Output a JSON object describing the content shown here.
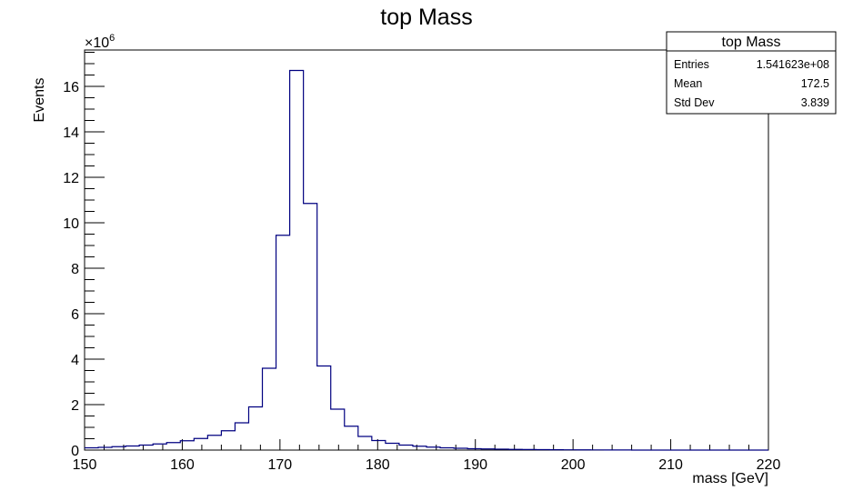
{
  "chart_data": {
    "type": "histogram",
    "title": "top Mass",
    "xlabel": "mass [GeV]",
    "ylabel": "Events",
    "y_multiplier": "×10",
    "y_multiplier_exp": "6",
    "xlim": [
      150,
      220
    ],
    "ylim": [
      0,
      17.6
    ],
    "x_ticks": [
      150,
      160,
      170,
      180,
      190,
      200,
      210,
      220
    ],
    "y_ticks": [
      0,
      2,
      4,
      6,
      8,
      10,
      12,
      14,
      16
    ],
    "bin_width": 1.4,
    "bin_start": 150,
    "values": [
      0.1,
      0.12,
      0.15,
      0.18,
      0.22,
      0.27,
      0.33,
      0.41,
      0.51,
      0.65,
      0.85,
      1.2,
      1.9,
      3.6,
      9.45,
      16.7,
      10.85,
      3.7,
      1.8,
      1.05,
      0.6,
      0.42,
      0.3,
      0.22,
      0.17,
      0.13,
      0.1,
      0.08,
      0.06,
      0.05,
      0.04,
      0.03,
      0.025,
      0.02,
      0.015,
      0.012,
      0.01,
      0.008,
      0.006,
      0.004,
      0,
      0,
      0,
      0,
      0,
      0,
      0,
      0,
      0,
      0
    ],
    "line_color": "#000080",
    "grid": false,
    "legend": "none",
    "stats_box": {
      "title": "top Mass",
      "rows": [
        {
          "label": "Entries",
          "value": "1.541623e+08"
        },
        {
          "label": "Mean",
          "value": "172.5"
        },
        {
          "label": "Std Dev",
          "value": "3.839"
        }
      ],
      "placement": "top-right"
    }
  }
}
